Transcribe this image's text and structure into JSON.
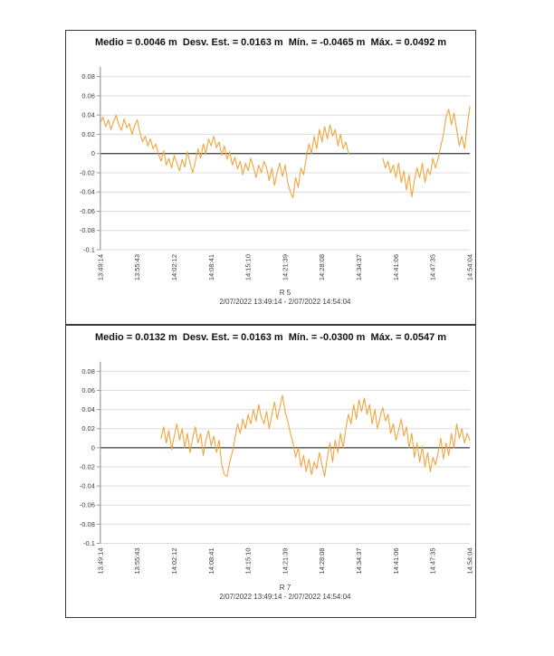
{
  "page": {
    "background": "#ffffff"
  },
  "styles": {
    "accent_orange": "#F2A43C",
    "grid_color": "#DCDCDC",
    "zero_line_color": "#4D4D4D",
    "axis_color": "#9A9A9A",
    "border_color": "#3A3A3A",
    "tick_label_color": "#3B3B3B",
    "footer_color": "#3F3F3F"
  },
  "chart_data": [
    {
      "type": "line",
      "name": "R 5",
      "title": "Medio = 0.0046 m  Desv. Est. = 0.0163 m  Mín. = -0.0465 m  Máx. = 0.0492 m",
      "stats": {
        "medio_m": 0.0046,
        "desv_est_m": 0.0163,
        "min_m": -0.0465,
        "max_m": 0.0492
      },
      "footer_label": "R 5",
      "footer_range": "2/07/2022 13:49:14 - 2/07/2022 14:54:04",
      "unit": "m",
      "grid": true,
      "legend": false,
      "line_color": "#F2A43C",
      "ylim": [
        -0.1,
        0.09
      ],
      "y_ticks": [
        0.08,
        0.06,
        0.04,
        0.02,
        0,
        -0.02,
        -0.04,
        -0.06,
        -0.08,
        -0.1
      ],
      "y_tick_labels": [
        "0.08",
        "0.06",
        "0.04",
        "0.02",
        "0",
        "-0.02",
        "-0.04",
        "-0.06",
        "-0.08",
        "-0.1"
      ],
      "x_tick_labels": [
        "13:49:14",
        "13:55:43",
        "14:02:12",
        "14:08:41",
        "14:15:10",
        "14:21:39",
        "14:28:08",
        "14:34:37",
        "14:41:06",
        "14:47:35",
        "14:54:04"
      ],
      "values_mm": [
        32,
        38,
        28,
        35,
        25,
        33,
        40,
        30,
        24,
        36,
        27,
        31,
        20,
        29,
        35,
        22,
        12,
        18,
        8,
        15,
        5,
        10,
        0,
        -8,
        3,
        -12,
        -5,
        -15,
        -2,
        -10,
        -18,
        -6,
        -14,
        2,
        -10,
        -20,
        -8,
        5,
        -5,
        10,
        0,
        15,
        8,
        18,
        6,
        12,
        -2,
        8,
        -6,
        2,
        -12,
        -4,
        -16,
        -8,
        -22,
        -10,
        -18,
        -5,
        -14,
        -25,
        -12,
        -20,
        -8,
        -15,
        -28,
        -15,
        -33,
        -20,
        -10,
        -24,
        -12,
        -30,
        -40,
        -46,
        -25,
        -35,
        -15,
        -22,
        -5,
        10,
        0,
        18,
        5,
        25,
        12,
        28,
        15,
        30,
        18,
        25,
        8,
        20,
        5,
        12,
        0,
        null,
        null,
        null,
        null,
        null,
        null,
        null,
        null,
        null,
        null,
        null,
        null,
        -5,
        -15,
        -8,
        -20,
        -12,
        -25,
        -10,
        -30,
        -18,
        -38,
        -22,
        -45,
        -28,
        -15,
        -25,
        -10,
        -30,
        -16,
        -22,
        -5,
        -15,
        -5,
        8,
        20,
        38,
        46,
        30,
        42,
        25,
        8,
        18,
        5,
        28,
        49
      ]
    },
    {
      "type": "line",
      "name": "R 7",
      "title": "Medio = 0.0132 m  Desv. Est. = 0.0163 m  Mín. = -0.0300 m  Máx. = 0.0547 m",
      "stats": {
        "medio_m": 0.0132,
        "desv_est_m": 0.0163,
        "min_m": -0.03,
        "max_m": 0.0547
      },
      "footer_label": "R 7",
      "footer_range": "2/07/2022 13:49:14 - 2/07/2022 14:54:04",
      "unit": "m",
      "grid": true,
      "legend": false,
      "line_color": "#F2A43C",
      "ylim": [
        -0.1,
        0.09
      ],
      "y_ticks": [
        0.08,
        0.06,
        0.04,
        0.02,
        0,
        -0.02,
        -0.04,
        -0.06,
        -0.08,
        -0.1
      ],
      "y_tick_labels": [
        "0.08",
        "0.06",
        "0.04",
        "0.02",
        "0",
        "-0.02",
        "-0.04",
        "-0.06",
        "-0.08",
        "-0.1"
      ],
      "x_tick_labels": [
        "13:49:14",
        "13:55:43",
        "14:02:12",
        "14:08:41",
        "14:15:10",
        "14:21:39",
        "14:28:08",
        "14:34:37",
        "14:41:06",
        "14:47:35",
        "14:54:04"
      ],
      "values_mm": [
        null,
        null,
        null,
        null,
        null,
        null,
        null,
        null,
        null,
        null,
        null,
        null,
        null,
        null,
        null,
        null,
        null,
        null,
        null,
        null,
        null,
        null,
        null,
        10,
        22,
        5,
        18,
        -2,
        12,
        25,
        8,
        20,
        0,
        15,
        -5,
        10,
        22,
        5,
        15,
        -8,
        8,
        18,
        2,
        12,
        -5,
        8,
        -18,
        -28,
        -30,
        -15,
        -5,
        10,
        25,
        15,
        30,
        20,
        35,
        25,
        40,
        28,
        45,
        32,
        25,
        38,
        20,
        35,
        48,
        30,
        42,
        55,
        38,
        28,
        15,
        5,
        -10,
        0,
        -20,
        -8,
        -25,
        -12,
        -28,
        -15,
        -22,
        -5,
        -18,
        -30,
        -10,
        5,
        -15,
        8,
        -5,
        15,
        0,
        20,
        35,
        25,
        45,
        30,
        50,
        38,
        52,
        35,
        45,
        25,
        40,
        20,
        32,
        42,
        28,
        35,
        15,
        25,
        8,
        18,
        30,
        12,
        22,
        0,
        15,
        -10,
        5,
        -15,
        2,
        -20,
        -5,
        -25,
        -10,
        -18,
        -5,
        10,
        -12,
        5,
        -8,
        15,
        0,
        25,
        10,
        20,
        5,
        15,
        8
      ]
    }
  ]
}
